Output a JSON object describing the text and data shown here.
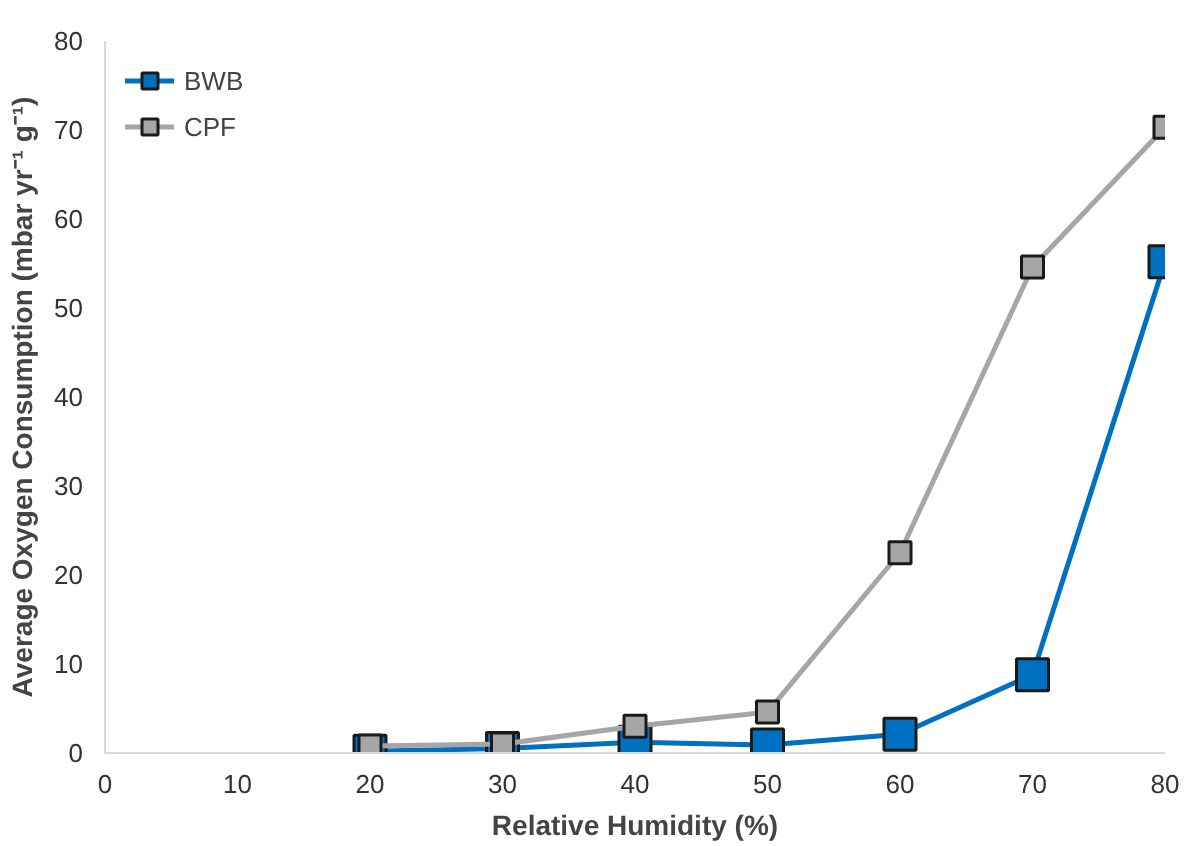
{
  "chart_data": {
    "type": "line",
    "xlabel": "Relative Humidity (%)",
    "ylabel": "Average Oxygen Consumption (mbar yr⁻¹ g⁻¹)",
    "x": [
      20,
      30,
      40,
      50,
      60,
      70,
      80
    ],
    "series": [
      {
        "name": "BWB",
        "color": "#0070c0",
        "values": [
          0.2,
          0.5,
          1.2,
          0.9,
          2.1,
          8.8,
          55.2
        ]
      },
      {
        "name": "CPF",
        "color": "#a6a6a6",
        "values": [
          0.8,
          1.0,
          3.0,
          4.6,
          22.5,
          54.6,
          70.3
        ]
      }
    ],
    "xlim": [
      0,
      80
    ],
    "ylim": [
      0,
      80
    ],
    "xticks": [
      0,
      10,
      20,
      30,
      40,
      50,
      60,
      70,
      80
    ],
    "yticks": [
      0,
      10,
      20,
      30,
      40,
      50,
      60,
      70,
      80
    ],
    "grid": false,
    "legend": "top left",
    "marker": "square",
    "line_style": "solid"
  }
}
